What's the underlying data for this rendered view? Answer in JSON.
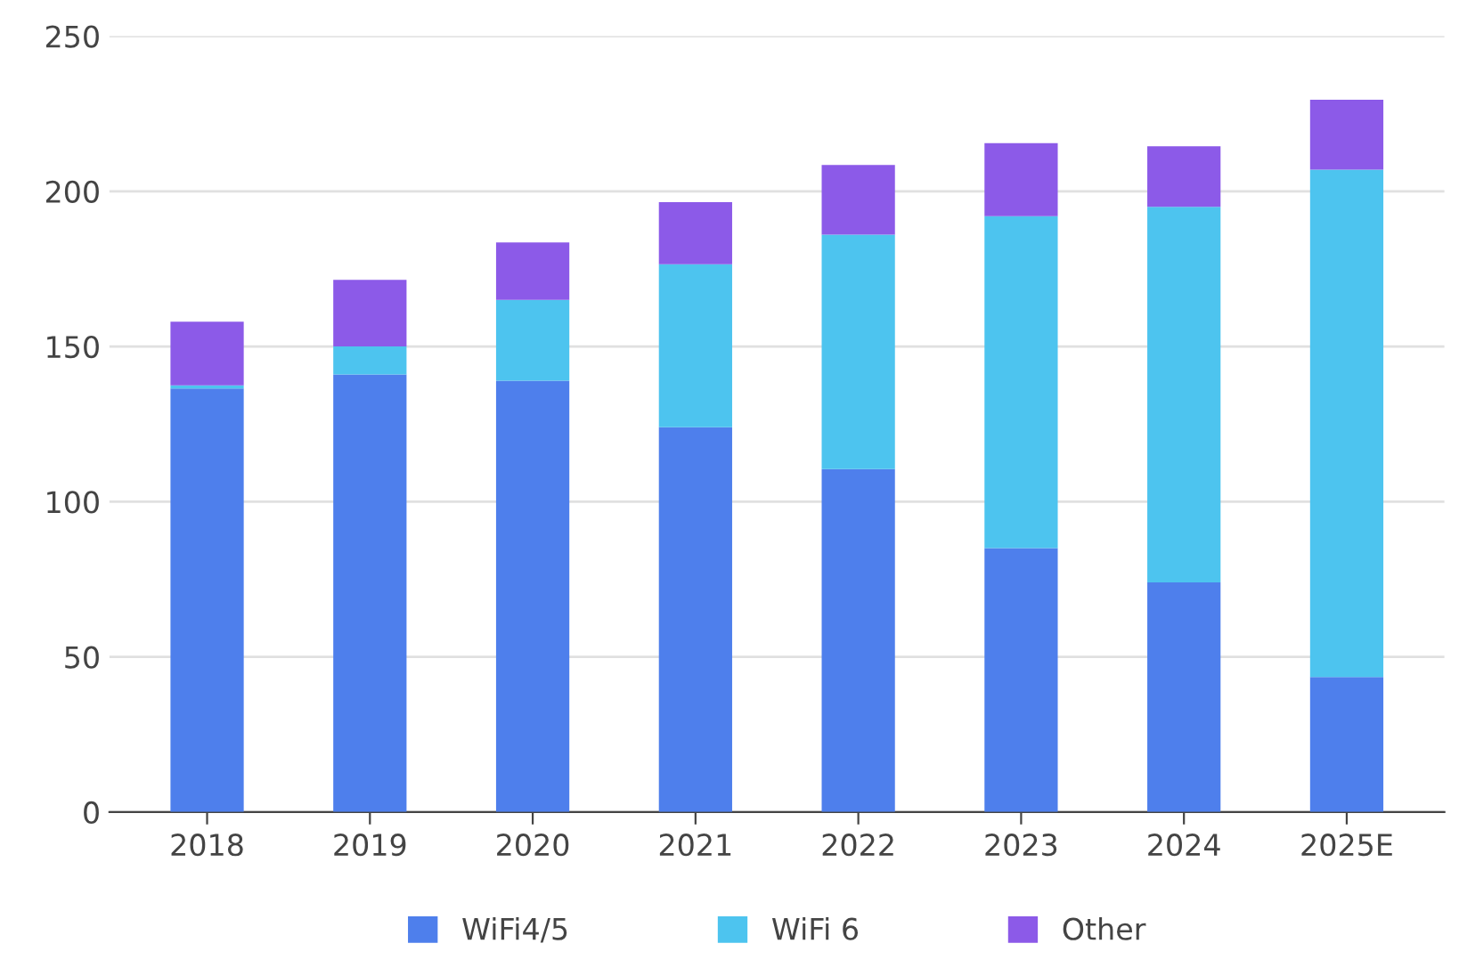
{
  "chart_data": {
    "type": "bar",
    "stacked": true,
    "categories": [
      "2018",
      "2019",
      "2020",
      "2021",
      "2022",
      "2023",
      "2024",
      "2025E"
    ],
    "series": [
      {
        "name": "WiFi4/5",
        "color": "#4e7fec",
        "values": [
          136.5,
          141,
          139,
          124,
          110.5,
          85,
          74,
          43.5
        ]
      },
      {
        "name": "WiFi 6",
        "color": "#4dc4ef",
        "values": [
          1,
          9,
          26,
          52.5,
          75.5,
          107,
          121,
          163.5
        ]
      },
      {
        "name": "Other",
        "color": "#8c5ae8",
        "values": [
          20.5,
          21.5,
          18.5,
          20,
          22.5,
          23.5,
          19.5,
          22.5
        ]
      }
    ],
    "ylim": [
      0,
      250
    ],
    "yticks": [
      0,
      50,
      100,
      150,
      200,
      250
    ],
    "grid": "y",
    "legend": "bottom"
  }
}
